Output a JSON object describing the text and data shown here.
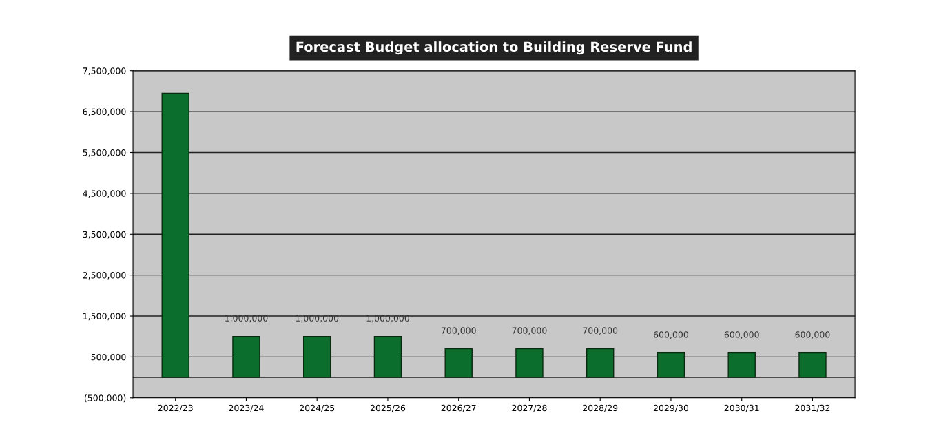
{
  "chart_data": {
    "type": "bar",
    "title": "Forecast Budget allocation to Building Reserve Fund",
    "categories": [
      "2022/23",
      "2023/24",
      "2024/25",
      "2025/26",
      "2026/27",
      "2027/28",
      "2028/29",
      "2029/30",
      "2030/31",
      "2031/32"
    ],
    "values": [
      6950000,
      1000000,
      1000000,
      1000000,
      700000,
      700000,
      700000,
      600000,
      600000,
      600000
    ],
    "value_labels": [
      null,
      "1,000,000",
      "1,000,000",
      "1,000,000",
      "700,000",
      "700,000",
      "700,000",
      "600,000",
      "600,000",
      "600,000"
    ],
    "color": "#0b6e2c",
    "ylim": [
      -500000,
      7500000
    ],
    "yticks": [
      {
        "value": -500000,
        "label": "(500,000)"
      },
      {
        "value": 500000,
        "label": "500,000"
      },
      {
        "value": 1500000,
        "label": "1,500,000"
      },
      {
        "value": 2500000,
        "label": "2,500,000"
      },
      {
        "value": 3500000,
        "label": "3,500,000"
      },
      {
        "value": 4500000,
        "label": "4,500,000"
      },
      {
        "value": 5500000,
        "label": "5,500,000"
      },
      {
        "value": 6500000,
        "label": "6,500,000"
      },
      {
        "value": 7500000,
        "label": "7,500,000"
      }
    ],
    "grid": "y"
  }
}
